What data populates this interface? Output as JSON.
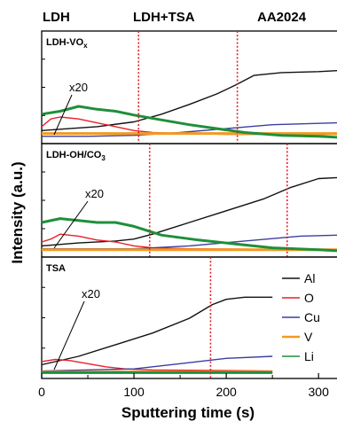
{
  "chart_data": {
    "type": "line",
    "regions": [
      "LDH",
      "LDH+TSA",
      "AA2024"
    ],
    "xlabel": "Sputtering time (s)",
    "ylabel": "Intensity (a.u.)",
    "xlim": [
      0,
      320
    ],
    "xticks": [
      0,
      100,
      200,
      300
    ],
    "legend": {
      "placement": "right",
      "entries": [
        "Al",
        "O",
        "Cu",
        "V",
        "Li"
      ]
    },
    "colors": {
      "Al": "#111111",
      "O": "#e8202a",
      "Cu": "#3a3fa0",
      "V": "#f39a1e",
      "Li": "#1f8f3a",
      "marker": "#e0202a"
    },
    "panels": [
      {
        "label": "LDH-VO",
        "label_sub": "x",
        "x_max": 320,
        "markers": [
          105,
          212
        ],
        "annotation": "x20",
        "series": [
          {
            "name": "Al",
            "x": [
              0,
              15,
              30,
              60,
              100,
              130,
              160,
              190,
              210,
              230,
              260,
              300,
              320
            ],
            "y": [
              0.08,
              0.09,
              0.1,
              0.12,
              0.17,
              0.25,
              0.35,
              0.46,
              0.55,
              0.65,
              0.68,
              0.69,
              0.7
            ]
          },
          {
            "name": "O",
            "x": [
              0,
              10,
              20,
              40,
              60,
              80,
              100,
              120,
              150,
              200,
              320
            ],
            "y": [
              0.12,
              0.2,
              0.22,
              0.2,
              0.16,
              0.12,
              0.08,
              0.06,
              0.05,
              0.04,
              0.04
            ]
          },
          {
            "name": "Cu",
            "x": [
              0,
              50,
              100,
              150,
              200,
              250,
              320
            ],
            "y": [
              0.02,
              0.02,
              0.03,
              0.06,
              0.1,
              0.14,
              0.16
            ]
          },
          {
            "name": "V",
            "x": [
              0,
              100,
              200,
              320
            ],
            "y": [
              0.05,
              0.05,
              0.05,
              0.05
            ]
          },
          {
            "name": "Li",
            "x": [
              0,
              20,
              40,
              60,
              80,
              100,
              130,
              160,
              190,
              220,
              260,
              300,
              320
            ],
            "y": [
              0.25,
              0.28,
              0.33,
              0.3,
              0.28,
              0.24,
              0.19,
              0.14,
              0.1,
              0.06,
              0.03,
              0.02,
              0.01
            ]
          }
        ]
      },
      {
        "label": "LDH-OH/CO",
        "label_sub": "3",
        "x_max": 320,
        "markers": [
          117,
          266
        ],
        "annotation": "x20",
        "series": [
          {
            "name": "Al",
            "x": [
              0,
              40,
              80,
              100,
              120,
              160,
              200,
              240,
              270,
              300,
              320
            ],
            "y": [
              0.06,
              0.09,
              0.11,
              0.13,
              0.18,
              0.3,
              0.42,
              0.54,
              0.66,
              0.75,
              0.76
            ]
          },
          {
            "name": "O",
            "x": [
              0,
              10,
              20,
              40,
              60,
              80,
              100,
              120,
              160,
              320
            ],
            "y": [
              0.1,
              0.13,
              0.18,
              0.16,
              0.12,
              0.1,
              0.06,
              0.04,
              0.03,
              0.02
            ]
          },
          {
            "name": "Cu",
            "x": [
              0,
              100,
              160,
              220,
              280,
              320
            ],
            "y": [
              0.03,
              0.03,
              0.06,
              0.11,
              0.16,
              0.17
            ]
          },
          {
            "name": "V",
            "x": [
              0,
              100,
              200,
              320
            ],
            "y": [
              0.02,
              0.02,
              0.02,
              0.02
            ]
          },
          {
            "name": "Li",
            "x": [
              0,
              20,
              40,
              60,
              80,
              100,
              130,
              170,
              210,
              250,
              300,
              320
            ],
            "y": [
              0.3,
              0.34,
              0.32,
              0.3,
              0.3,
              0.26,
              0.17,
              0.12,
              0.08,
              0.04,
              0.02,
              0.01
            ]
          }
        ]
      },
      {
        "label": "TSA",
        "label_sub": "",
        "x_max": 250,
        "markers": [
          183
        ],
        "annotation": "x20",
        "series": [
          {
            "name": "Al",
            "x": [
              0,
              40,
              80,
              120,
              160,
              185,
              200,
              220,
              250
            ],
            "y": [
              0.08,
              0.16,
              0.27,
              0.38,
              0.52,
              0.65,
              0.7,
              0.72,
              0.72
            ]
          },
          {
            "name": "O",
            "x": [
              0,
              15,
              30,
              50,
              70,
              90,
              120,
              250
            ],
            "y": [
              0.11,
              0.13,
              0.12,
              0.09,
              0.06,
              0.04,
              0.03,
              0.02
            ]
          },
          {
            "name": "Cu",
            "x": [
              0,
              100,
              150,
              200,
              250
            ],
            "y": [
              0.02,
              0.04,
              0.09,
              0.14,
              0.16
            ]
          },
          {
            "name": "V",
            "x": [
              0,
              100,
              250
            ],
            "y": [
              0.01,
              0.01,
              0.01
            ]
          },
          {
            "name": "Li",
            "x": [
              0,
              100,
              250
            ],
            "y": [
              0.005,
              0.005,
              0.005
            ]
          }
        ]
      }
    ]
  }
}
